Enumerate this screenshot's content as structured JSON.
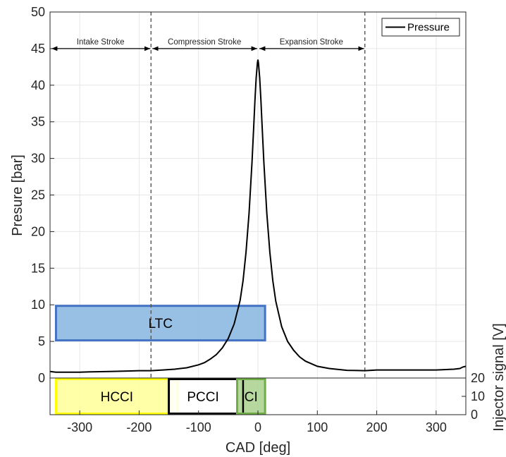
{
  "chart_data": {
    "type": "line",
    "xlabel": "CAD [deg]",
    "ylabel": "Presure [bar]",
    "y2label": "Injector signal [V]",
    "xlim": [
      -350,
      350
    ],
    "ylim": [
      0,
      50
    ],
    "xticks": [
      -300,
      -200,
      -100,
      0,
      100,
      200,
      300
    ],
    "yticks": [
      0,
      5,
      10,
      15,
      20,
      25,
      30,
      35,
      40,
      45,
      50
    ],
    "y2ticks": [
      0,
      10,
      20
    ],
    "y2lim": [
      0,
      20
    ],
    "grid": true,
    "legend": {
      "position": "top-right",
      "entries": [
        "Pressure"
      ]
    },
    "series": [
      {
        "name": "Pressure",
        "color": "#000000",
        "x": [
          -350,
          -340,
          -320,
          -300,
          -280,
          -250,
          -220,
          -200,
          -180,
          -160,
          -140,
          -120,
          -100,
          -90,
          -80,
          -70,
          -60,
          -50,
          -40,
          -30,
          -25,
          -20,
          -15,
          -10,
          -7,
          -5,
          -3,
          -1,
          0,
          1,
          3,
          5,
          7,
          10,
          15,
          20,
          25,
          30,
          40,
          50,
          60,
          70,
          80,
          100,
          120,
          150,
          180,
          200,
          250,
          300,
          330,
          340,
          345,
          350
        ],
        "y": [
          0.9,
          0.8,
          0.8,
          0.8,
          0.85,
          0.9,
          0.95,
          1.0,
          1.0,
          1.1,
          1.2,
          1.4,
          1.8,
          2.1,
          2.6,
          3.2,
          4.1,
          5.4,
          7.4,
          10.6,
          13.3,
          17.2,
          22.5,
          29.5,
          34.5,
          38.0,
          41.0,
          43.0,
          43.5,
          43.0,
          41.0,
          38.0,
          34.5,
          29.5,
          22.5,
          17.2,
          13.3,
          10.5,
          7.0,
          5.0,
          3.8,
          2.9,
          2.3,
          1.6,
          1.3,
          1.05,
          1.0,
          1.1,
          1.1,
          1.1,
          1.2,
          1.3,
          1.5,
          1.6
        ]
      }
    ],
    "vlines": [
      -180,
      0,
      180
    ],
    "stroke_annotations": [
      {
        "label": "Intake Stroke",
        "x0": -350,
        "x1": -180
      },
      {
        "label": "Compression Stroke",
        "x0": -180,
        "x1": 0
      },
      {
        "label": "Expansion Stroke",
        "x0": 0,
        "x1": 180
      }
    ],
    "stroke_arrow_y": 45,
    "regions": [
      {
        "label": "LTC",
        "x0": -340,
        "x1": 12,
        "y0": 5,
        "y1": 10,
        "fill": "#8db9e2",
        "stroke": "#4472c4",
        "axis": "pressure"
      },
      {
        "label": "HCCI",
        "x0": -340,
        "x1": -135,
        "y0": 0,
        "y1": 20,
        "fill": "#ffff99",
        "stroke": "#ffff00",
        "axis": "injector"
      },
      {
        "label": "PCCI",
        "x0": -150,
        "x1": -35,
        "y0": 0,
        "y1": 20,
        "fill": "#ffffff",
        "stroke": "#000000",
        "axis": "injector"
      },
      {
        "label": "CI",
        "x0": -35,
        "x1": 12,
        "y0": 0,
        "y1": 20,
        "fill": "#a9d18e",
        "stroke": "#70ad47",
        "axis": "injector"
      }
    ],
    "injector_marker_x": -25
  }
}
